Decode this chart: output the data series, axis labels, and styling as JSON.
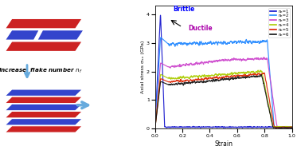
{
  "ylabel": "Axial stress σₓₓ (GPa)",
  "xlabel": "Strain",
  "xlim": [
    0,
    1.0
  ],
  "ylim": [
    0,
    4.3
  ],
  "yticks": [
    0,
    1,
    2,
    3,
    4
  ],
  "xticks": [
    0,
    0.2,
    0.4,
    0.6,
    0.8,
    1.0
  ],
  "brittle_label": "Brittle",
  "ductile_label": "Ductile",
  "legend_labels": [
    "nₑ=1",
    "nₑ=2",
    "nₑ=3",
    "nₑ=4",
    "nₑ=5",
    "nₑ=6"
  ],
  "colors": [
    "#1111cc",
    "#2288ff",
    "#cc44cc",
    "#aacc00",
    "#dd2200",
    "#111111"
  ],
  "background_color": "#ffffff",
  "layer_colors": [
    "#cc2222",
    "#3344cc"
  ],
  "arrow_color": "#66aadd"
}
